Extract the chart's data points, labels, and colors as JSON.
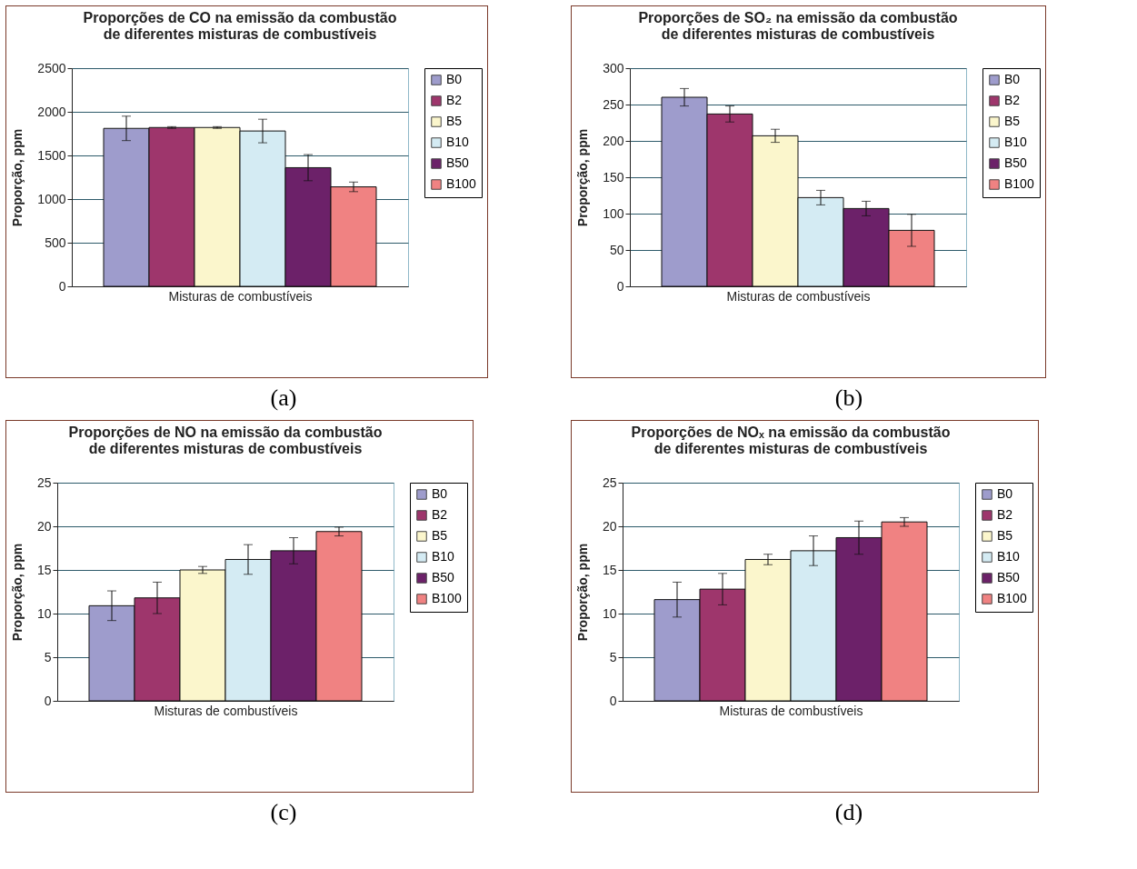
{
  "chart_data": [
    {
      "type": "bar",
      "title": "Proporções de CO na emissão da combustão de diferentes misturas de combustíveis",
      "xlabel": "Misturas de combustíveis",
      "ylabel": "Proporção, ppm",
      "categories": [
        null
      ],
      "ylim": [
        0,
        2500
      ],
      "yticks": [
        0,
        500,
        1000,
        1500,
        2000,
        2500
      ],
      "grid": "y",
      "legend": "right",
      "tick_labels": "y",
      "annotations": [
        "(a)"
      ],
      "series": [
        {
          "name": "B0",
          "color": "#9e9ccc",
          "values": [
            1810
          ],
          "errors": [
            140
          ]
        },
        {
          "name": "B2",
          "color": "#9e366c",
          "values": [
            1820
          ],
          "errors": [
            10
          ]
        },
        {
          "name": "B5",
          "color": "#fbf6cc",
          "values": [
            1820
          ],
          "errors": [
            10
          ]
        },
        {
          "name": "B10",
          "color": "#d4ebf3",
          "values": [
            1780
          ],
          "errors": [
            135
          ]
        },
        {
          "name": "B50",
          "color": "#6c2169",
          "values": [
            1360
          ],
          "errors": [
            150
          ]
        },
        {
          "name": "B100",
          "color": "#f08282",
          "values": [
            1140
          ],
          "errors": [
            55
          ]
        }
      ]
    },
    {
      "type": "bar",
      "title": "Proporções de SO₂ na emissão da combustão de diferentes misturas de combustíveis",
      "xlabel": "Misturas de combustíveis",
      "ylabel": "Proporção, ppm",
      "categories": [
        null
      ],
      "ylim": [
        0,
        300
      ],
      "yticks": [
        0,
        50,
        100,
        150,
        200,
        250,
        300
      ],
      "grid": "y",
      "legend": "right",
      "tick_labels": "y",
      "annotations": [
        "(b)"
      ],
      "series": [
        {
          "name": "B0",
          "color": "#9e9ccc",
          "values": [
            260
          ],
          "errors": [
            12
          ]
        },
        {
          "name": "B2",
          "color": "#9e366c",
          "values": [
            237
          ],
          "errors": [
            11
          ]
        },
        {
          "name": "B5",
          "color": "#fbf6cc",
          "values": [
            207
          ],
          "errors": [
            9
          ]
        },
        {
          "name": "B10",
          "color": "#d4ebf3",
          "values": [
            122
          ],
          "errors": [
            10
          ]
        },
        {
          "name": "B50",
          "color": "#6c2169",
          "values": [
            107
          ],
          "errors": [
            10
          ]
        },
        {
          "name": "B100",
          "color": "#f08282",
          "values": [
            77
          ],
          "errors": [
            22
          ]
        }
      ]
    },
    {
      "type": "bar",
      "title": "Proporções de NO na emissão da combustão de diferentes misturas de combustíveis",
      "xlabel": "Misturas de combustíveis",
      "ylabel": "Proporção, ppm",
      "categories": [
        null
      ],
      "ylim": [
        0,
        25
      ],
      "yticks": [
        0,
        5,
        10,
        15,
        20,
        25
      ],
      "grid": "y",
      "legend": "right",
      "tick_labels": "y",
      "annotations": [
        "(c)"
      ],
      "series": [
        {
          "name": "B0",
          "color": "#9e9ccc",
          "values": [
            10.9
          ],
          "errors": [
            1.7
          ]
        },
        {
          "name": "B2",
          "color": "#9e366c",
          "values": [
            11.8
          ],
          "errors": [
            1.8
          ]
        },
        {
          "name": "B5",
          "color": "#fbf6cc",
          "values": [
            15.0
          ],
          "errors": [
            0.4
          ]
        },
        {
          "name": "B10",
          "color": "#d4ebf3",
          "values": [
            16.2
          ],
          "errors": [
            1.7
          ]
        },
        {
          "name": "B50",
          "color": "#6c2169",
          "values": [
            17.2
          ],
          "errors": [
            1.5
          ]
        },
        {
          "name": "B100",
          "color": "#f08282",
          "values": [
            19.4
          ],
          "errors": [
            0.5
          ]
        }
      ]
    },
    {
      "type": "bar",
      "title": "Proporções de NOₓ na emissão da combustão de diferentes misturas de combustíveis",
      "xlabel": "Misturas de combustíveis",
      "ylabel": "Proporção, ppm",
      "categories": [
        null
      ],
      "ylim": [
        0,
        25
      ],
      "yticks": [
        0,
        5,
        10,
        15,
        20,
        25
      ],
      "grid": "y",
      "legend": "right",
      "tick_labels": "y",
      "annotations": [
        "(d)"
      ],
      "series": [
        {
          "name": "B0",
          "color": "#9e9ccc",
          "values": [
            11.6
          ],
          "errors": [
            2.0
          ]
        },
        {
          "name": "B2",
          "color": "#9e366c",
          "values": [
            12.8
          ],
          "errors": [
            1.8
          ]
        },
        {
          "name": "B5",
          "color": "#fbf6cc",
          "values": [
            16.2
          ],
          "errors": [
            0.6
          ]
        },
        {
          "name": "B10",
          "color": "#d4ebf3",
          "values": [
            17.2
          ],
          "errors": [
            1.7
          ]
        },
        {
          "name": "B50",
          "color": "#6c2169",
          "values": [
            18.7
          ],
          "errors": [
            1.9
          ]
        },
        {
          "name": "B100",
          "color": "#f08282",
          "values": [
            20.5
          ],
          "errors": [
            0.5
          ]
        }
      ]
    }
  ]
}
